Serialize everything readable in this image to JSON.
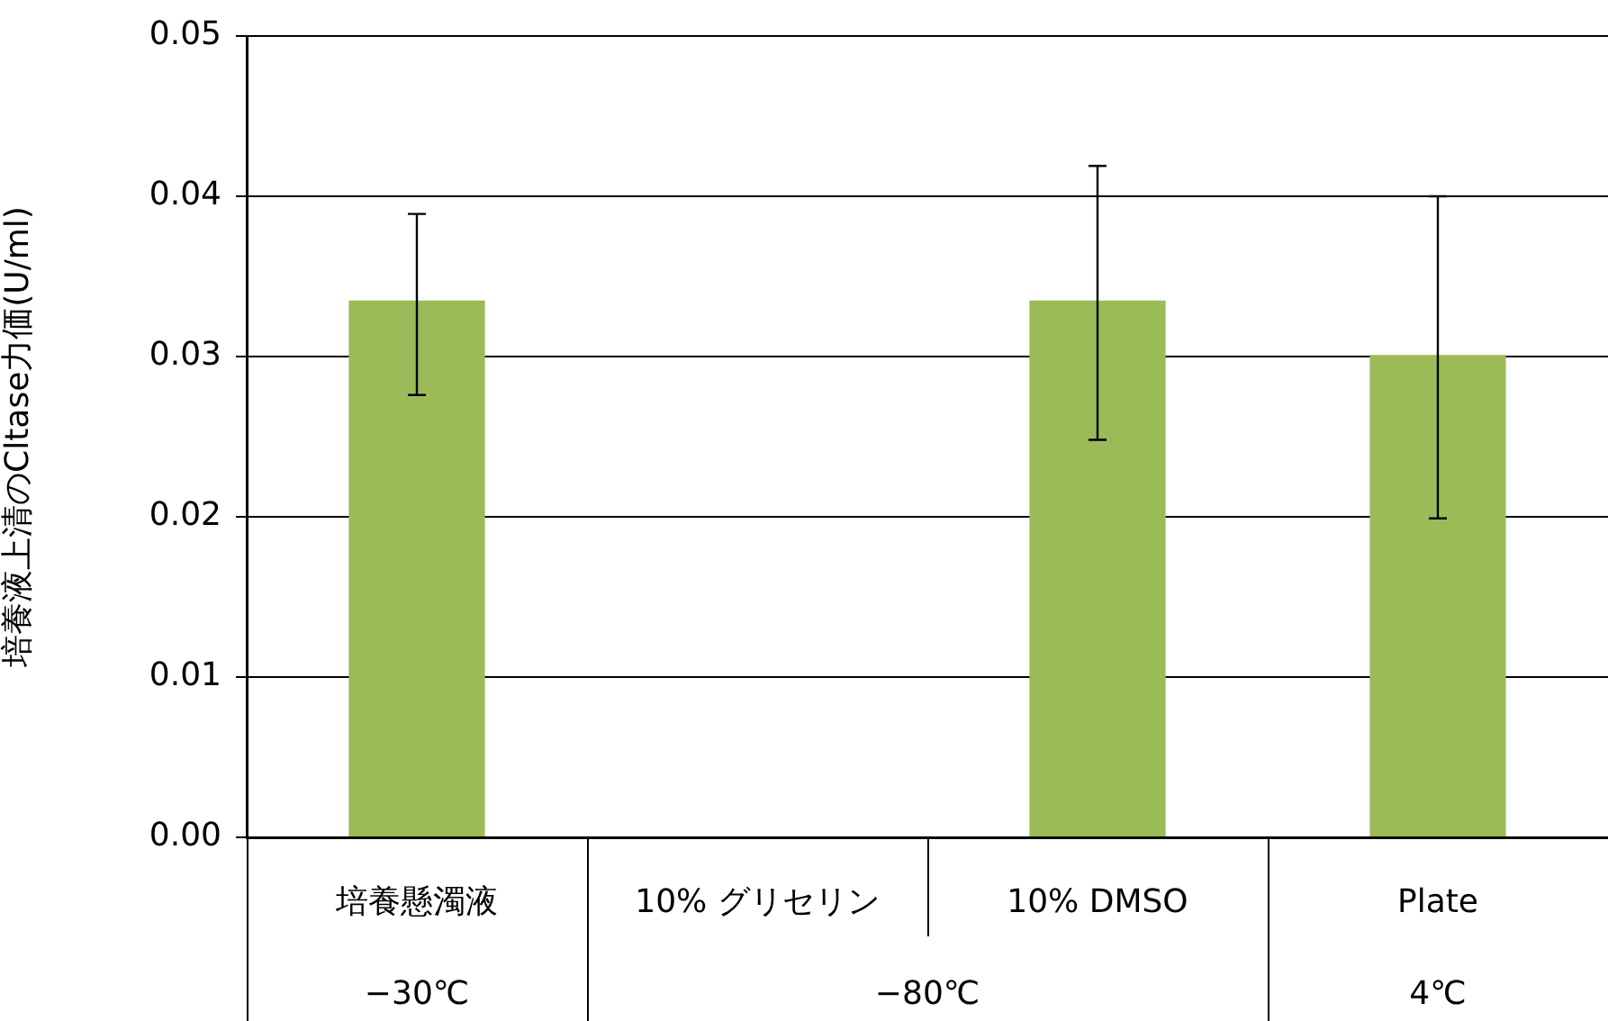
{
  "chart_data": {
    "type": "bar",
    "ylabel": "培養液上清のCltase力価(U/ml)",
    "categories": [
      "培養懸濁液",
      "10% グリセリン",
      "10% DMSO",
      "Plate"
    ],
    "values": [
      0.0335,
      0,
      0.0335,
      0.0301
    ],
    "errors": [
      [
        0.0276,
        0.0389
      ],
      null,
      [
        0.0248,
        0.0419
      ],
      [
        0.0199,
        0.04
      ]
    ],
    "color": "#9bbb59",
    "ylim": [
      0,
      0.05
    ],
    "yticks": [
      {
        "value": 0,
        "label": "0.00"
      },
      {
        "value": 0.01,
        "label": "0.01"
      },
      {
        "value": 0.02,
        "label": "0.02"
      },
      {
        "value": 0.03,
        "label": "0.03"
      },
      {
        "value": 0.04,
        "label": "0.04"
      },
      {
        "value": 0.05,
        "label": "0.05"
      }
    ],
    "grid": "y",
    "legend": false,
    "annotations": [
      "−30℃",
      "−80℃",
      "4℃"
    ]
  }
}
